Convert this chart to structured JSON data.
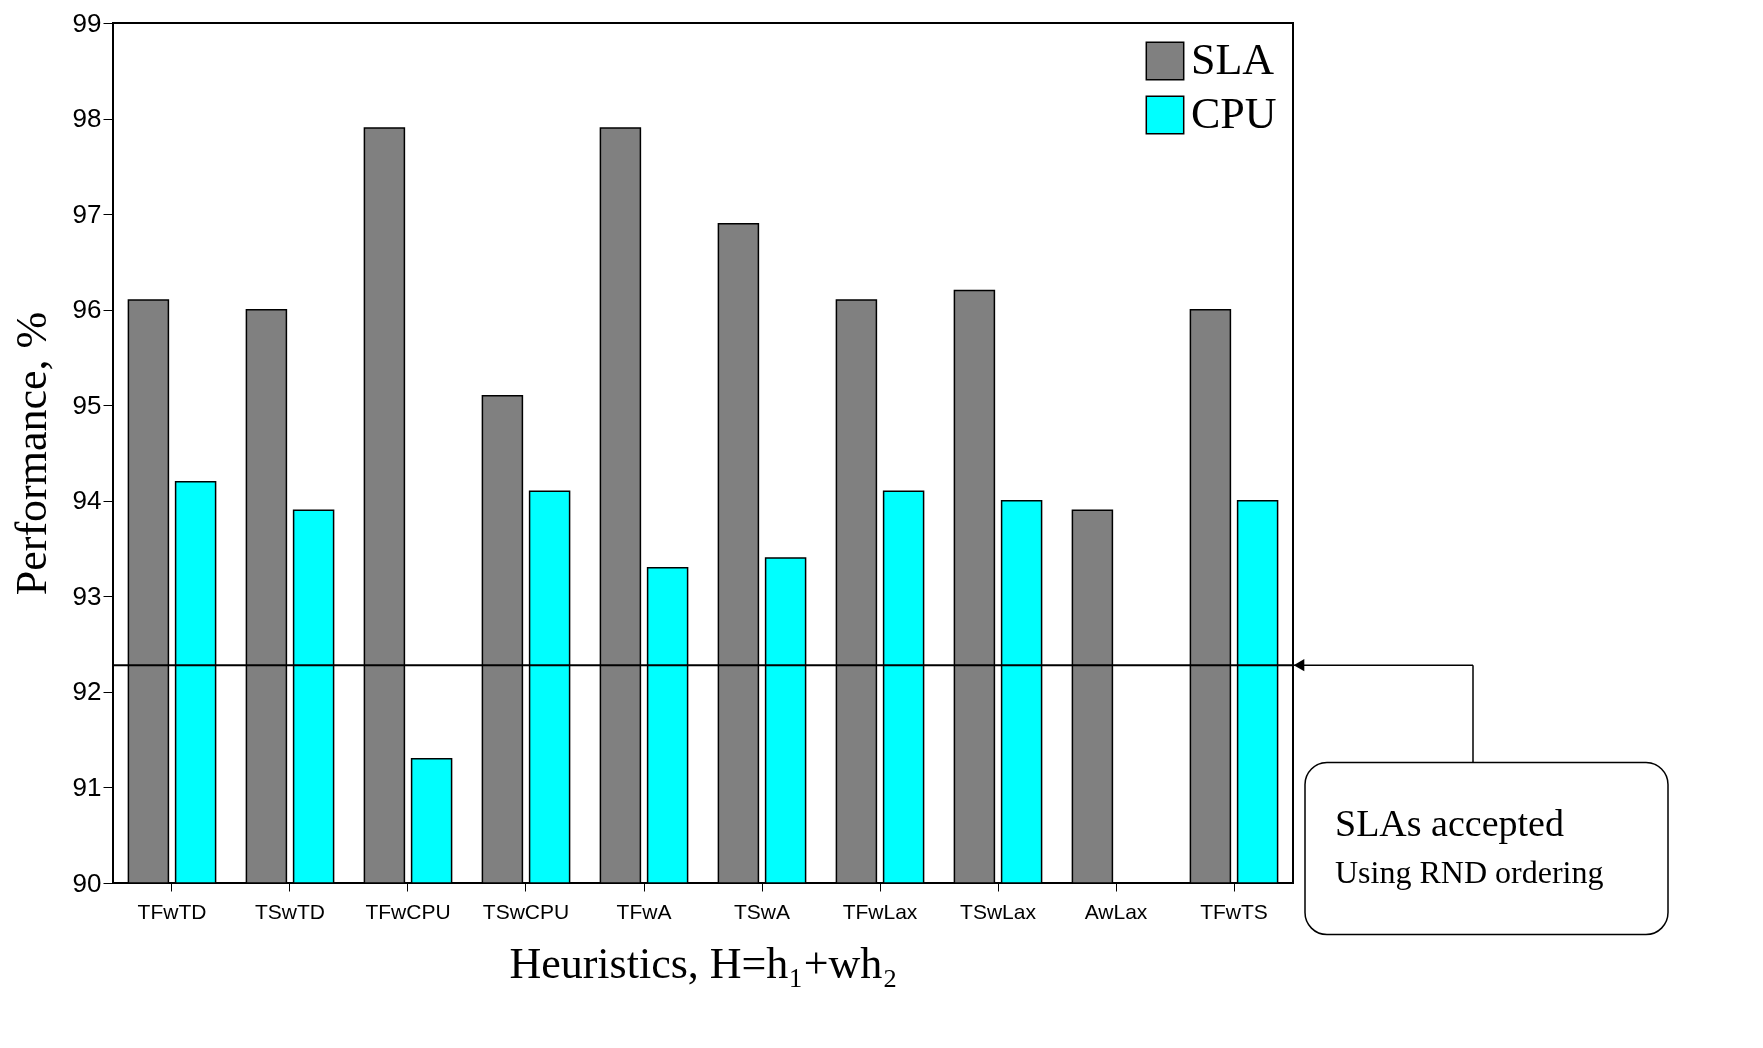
{
  "chart_data": {
    "type": "bar",
    "xlabel": "Heuristics, H=h₁+wh₂",
    "ylabel": "Performance, %",
    "categories": [
      "TFwTD",
      "TSwTD",
      "TFwCPU",
      "TSwCPU",
      "TFwA",
      "TSwA",
      "TFwLax",
      "TSwLax",
      "AwLax",
      "TFwTS"
    ],
    "series": [
      {
        "name": "SLA",
        "color": "#808080",
        "values": [
          96.1,
          96.0,
          97.9,
          95.1,
          97.9,
          96.9,
          96.1,
          96.2,
          93.9,
          96.0
        ]
      },
      {
        "name": "CPU",
        "color": "#00ffff",
        "values": [
          94.2,
          93.9,
          91.3,
          94.1,
          93.3,
          93.4,
          94.1,
          94.0,
          null,
          94.0
        ]
      }
    ],
    "ylim": [
      90,
      99
    ],
    "yticks": [
      90,
      91,
      92,
      93,
      94,
      95,
      96,
      97,
      98,
      99
    ],
    "ref_lines": [
      {
        "axis": "y",
        "value": 92.28
      }
    ],
    "annotations": [
      "SLAs accepted",
      "Using RND ordering"
    ],
    "legend": "top right",
    "grid": false
  }
}
